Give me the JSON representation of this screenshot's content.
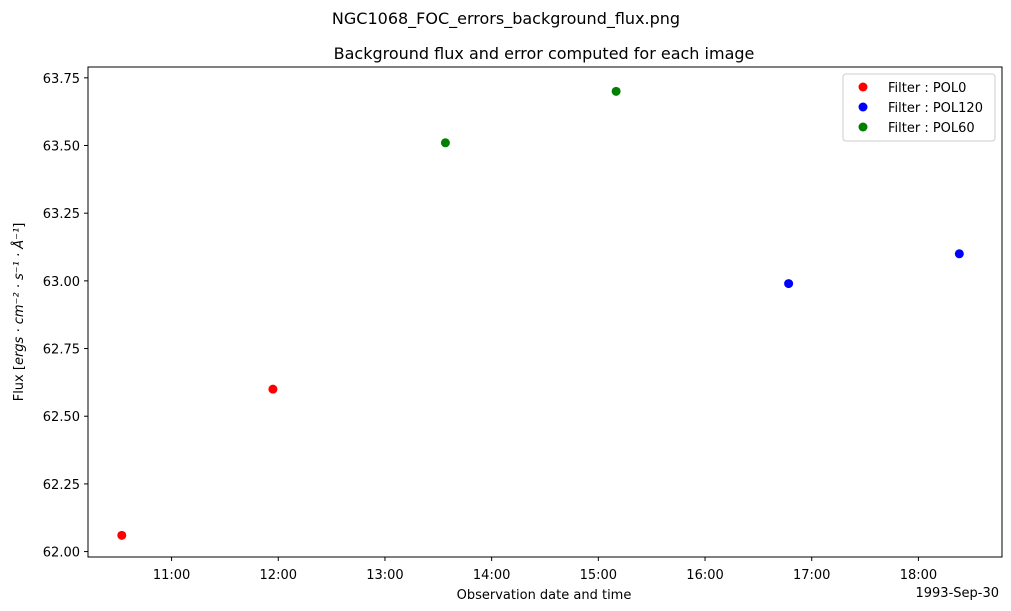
{
  "suptitle": "NGC1068_FOC_errors_background_flux.png",
  "chart_data": {
    "type": "scatter",
    "title": "Background flux and error computed for each image",
    "xlabel": "Observation date and time",
    "ylabel_prefix": "Flux [",
    "ylabel_math": "ergs · cm⁻² · s⁻¹ · Å⁻¹",
    "ylabel_suffix": "]",
    "x_offset_label": "1993-Sep-30",
    "xlim": [
      "1993-09-30T10:13",
      "1993-09-30T18:47"
    ],
    "ylim": [
      61.98,
      63.79
    ],
    "x_ticks": [
      "11:00",
      "12:00",
      "13:00",
      "14:00",
      "15:00",
      "16:00",
      "17:00",
      "18:00"
    ],
    "y_ticks": [
      "62.00",
      "62.25",
      "62.50",
      "62.75",
      "63.00",
      "63.25",
      "63.50",
      "63.75"
    ],
    "grid": false,
    "legend_position": "top-right",
    "series": [
      {
        "name": "Filter : POL0",
        "color": "#ff0000",
        "points": [
          {
            "x": "1993-09-30T10:32",
            "y": 62.06
          },
          {
            "x": "1993-09-30T11:57",
            "y": 62.6
          }
        ]
      },
      {
        "name": "Filter : POL120",
        "color": "#0000ff",
        "points": [
          {
            "x": "1993-09-30T16:47",
            "y": 62.99
          },
          {
            "x": "1993-09-30T18:23",
            "y": 63.1
          }
        ]
      },
      {
        "name": "Filter : POL60",
        "color": "#008000",
        "points": [
          {
            "x": "1993-09-30T13:34",
            "y": 63.51
          },
          {
            "x": "1993-09-30T15:10",
            "y": 63.7
          }
        ]
      }
    ]
  }
}
